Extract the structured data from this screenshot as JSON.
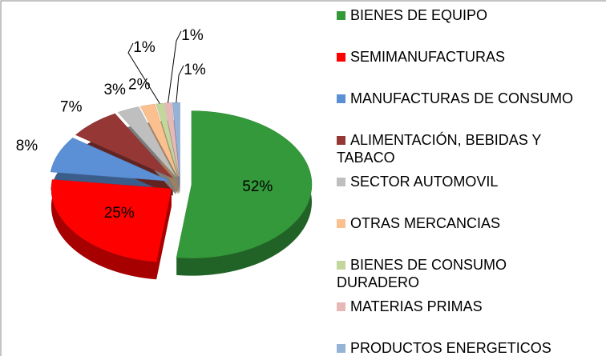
{
  "chart_data": {
    "type": "pie",
    "categories": [
      "BIENES DE EQUIPO",
      "SEMIMANUFACTURAS",
      "MANUFACTURAS DE CONSUMO",
      "ALIMENTACIÓN, BEBIDAS Y TABACO",
      "SECTOR AUTOMOVIL",
      "OTRAS MERCANCIAS",
      "BIENES DE CONSUMO DURADERO",
      "MATERIAS PRIMAS",
      "PRODUCTOS ENERGETICOS"
    ],
    "values": [
      52,
      25,
      8,
      7,
      3,
      2,
      1,
      1,
      1
    ],
    "value_labels": [
      "52%",
      "25%",
      "8%",
      "7%",
      "3%",
      "2%",
      "1%",
      "1%",
      "1%"
    ],
    "colors": [
      "#33993a",
      "#ff0000",
      "#5b8fd6",
      "#953735",
      "#bfbfbf",
      "#fac090",
      "#c3d69b",
      "#e6b9b8",
      "#95b3d7"
    ],
    "legend": "right"
  }
}
